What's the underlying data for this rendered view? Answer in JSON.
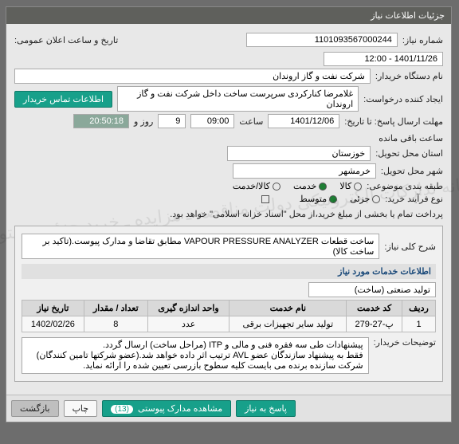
{
  "header_title": "جزئیات اطلاعات نیاز",
  "labels": {
    "req_no": "شماره نیاز:",
    "announce_dt": "تاریخ و ساعت اعلان عمومی:",
    "buyer_name": "نام دستگاه خریدار:",
    "req_creator": "ایجاد کننده درخواست:",
    "contact_btn": "اطلاعات تماس خریدار",
    "deadline": "مهلت ارسال پاسخ: تا تاریخ:",
    "time_word": "ساعت",
    "day_word": "روز و",
    "remaining": "ساعت باقی مانده",
    "province": "استان محل تحویل:",
    "city": "شهر محل تحویل:",
    "category": "طبقه بندی موضوعی:",
    "goods": "کالا",
    "service": "خدمت",
    "goods_service": "کالا/خدمت",
    "proc_type": "نوع فرآیند خرید:",
    "partial": "جزئی",
    "medium": "متوسط",
    "payment_note": "پرداخت تمام یا بخشی از مبلغ خرید،از محل \"اسناد خزانه اسلامی\" خواهد بود.",
    "general_desc": "شرح کلی نیاز:",
    "services_info": "اطلاعات خدمات مورد نیاز",
    "service_type_opt": "تولید صنعتی (ساخت)",
    "buyer_notes": "توضیحات خریدار:"
  },
  "fields": {
    "req_no": "1101093567000244",
    "announce_dt": "1401/11/26 - 12:00",
    "buyer_name": "شرکت نفت و گاز اروندان",
    "req_creator": "غلامرضا کنارکردی سرپرست ساخت داخل شرکت نفت و گاز اروندان",
    "deadline_date": "1401/12/06",
    "deadline_time": "09:00",
    "remaining_days": "9",
    "remaining_time": "20:50:18",
    "province": "خوزستان",
    "city": "خرمشهر",
    "general_desc": "ساخت قطعات VAPOUR PRESSURE ANALYZER مطابق تقاضا و مدارک پیوست.(تاکید بر ساخت کالا)"
  },
  "table": {
    "cols": [
      "ردیف",
      "کد خدمت",
      "نام خدمت",
      "واحد اندازه گیری",
      "تعداد / مقدار",
      "تاریخ نیاز"
    ],
    "rows": [
      [
        "1",
        "پ-27-279",
        "تولید سایر تجهیزات برقی",
        "عدد",
        "8",
        "1402/02/26"
      ]
    ]
  },
  "buyer_notes": "پیشنهادات طی سه فقره فنی و مالی و ITP (مراحل ساخت) ارسال گردد.\nفقط به پیشنهاد سازندگان عضو AVL ترتیب اثر داده خواهد شد.(عضو شرکتها تامین کنندگان)\nشرکت سازنده برنده می بایست کلیه سطوح بازرسی تعیین شده را ارائه نماید.",
  "footer": {
    "reply": "پاسخ به نیاز",
    "attachments": "مشاهده مدارک پیوستی",
    "att_count": "(13)",
    "print": "چاپ",
    "back": "بازگشت"
  },
  "watermark": "سامانه تدارکات الکترونیکی دولت\nمناقصه ـ مزایده ـ خرید جزئی و متوسط"
}
